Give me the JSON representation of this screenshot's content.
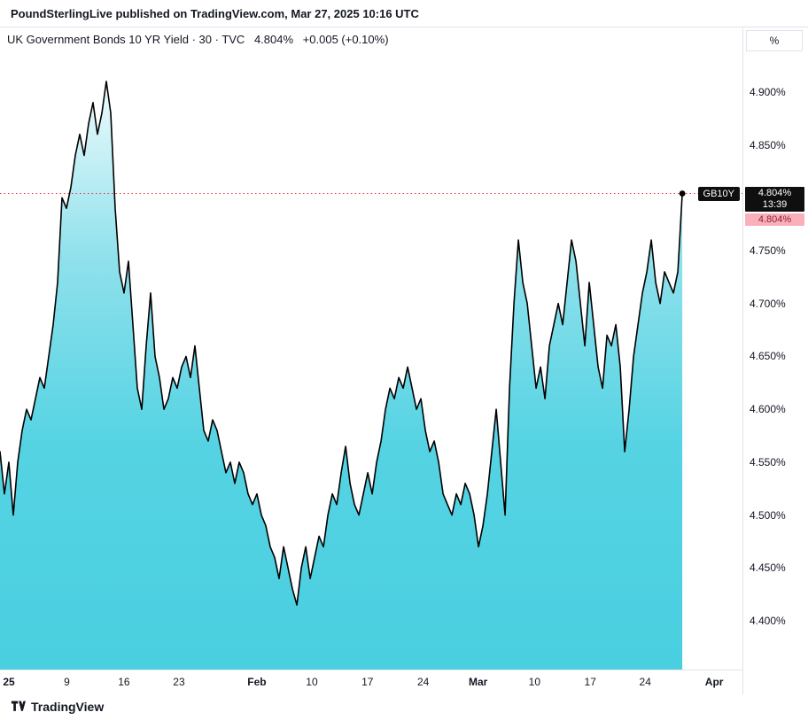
{
  "header": {
    "text": "PoundSterlingLive published on TradingView.com, Mar 27, 2025 10:16 UTC"
  },
  "legend": {
    "title": "UK Government Bonds 10 YR Yield · 30 · TVC",
    "price": "4.804%",
    "change": "+0.005 (+0.10%)"
  },
  "axis": {
    "unit": "%"
  },
  "footer": {
    "brand": "TradingView"
  },
  "chart_data": {
    "type": "area",
    "title": "UK Government Bonds 10 YR Yield · 30 · TVC",
    "symbol": "GB10Y",
    "last_price": "4.804%",
    "change": "+0.005 (+0.10%)",
    "price_line_value": 4.804,
    "price_label": "4.804%",
    "time_label": "13:39",
    "secondary_price_label": "4.804%",
    "ylabel": "%",
    "y_ticks": [
      4.9,
      4.85,
      4.8,
      4.75,
      4.7,
      4.65,
      4.6,
      4.55,
      4.5,
      4.45,
      4.4
    ],
    "y_render_range": [
      4.354,
      4.961
    ],
    "x_ticks": [
      {
        "label": "25",
        "pos": 0.012,
        "bold": true
      },
      {
        "label": "9",
        "pos": 0.09,
        "bold": false
      },
      {
        "label": "16",
        "pos": 0.167,
        "bold": false
      },
      {
        "label": "23",
        "pos": 0.241,
        "bold": false
      },
      {
        "label": "Feb",
        "pos": 0.346,
        "bold": true
      },
      {
        "label": "10",
        "pos": 0.42,
        "bold": false
      },
      {
        "label": "17",
        "pos": 0.495,
        "bold": false
      },
      {
        "label": "24",
        "pos": 0.57,
        "bold": false
      },
      {
        "label": "Mar",
        "pos": 0.644,
        "bold": true
      },
      {
        "label": "10",
        "pos": 0.72,
        "bold": false
      },
      {
        "label": "17",
        "pos": 0.795,
        "bold": false
      },
      {
        "label": "24",
        "pos": 0.869,
        "bold": false
      },
      {
        "label": "Apr",
        "pos": 0.962,
        "bold": true
      }
    ],
    "series_x_end": 0.919,
    "values": [
      4.56,
      4.52,
      4.55,
      4.5,
      4.55,
      4.58,
      4.6,
      4.59,
      4.61,
      4.63,
      4.62,
      4.65,
      4.68,
      4.72,
      4.8,
      4.79,
      4.81,
      4.84,
      4.86,
      4.84,
      4.87,
      4.89,
      4.86,
      4.88,
      4.91,
      4.88,
      4.79,
      4.73,
      4.71,
      4.74,
      4.68,
      4.62,
      4.6,
      4.66,
      4.71,
      4.65,
      4.63,
      4.6,
      4.61,
      4.63,
      4.62,
      4.64,
      4.65,
      4.63,
      4.66,
      4.62,
      4.58,
      4.57,
      4.59,
      4.58,
      4.56,
      4.54,
      4.55,
      4.53,
      4.55,
      4.54,
      4.52,
      4.51,
      4.52,
      4.5,
      4.49,
      4.47,
      4.46,
      4.44,
      4.47,
      4.45,
      4.43,
      4.415,
      4.45,
      4.47,
      4.44,
      4.46,
      4.48,
      4.47,
      4.5,
      4.52,
      4.51,
      4.54,
      4.565,
      4.53,
      4.51,
      4.5,
      4.52,
      4.54,
      4.52,
      4.55,
      4.57,
      4.6,
      4.62,
      4.61,
      4.63,
      4.62,
      4.64,
      4.62,
      4.6,
      4.61,
      4.58,
      4.56,
      4.57,
      4.55,
      4.52,
      4.51,
      4.5,
      4.52,
      4.51,
      4.53,
      4.52,
      4.5,
      4.47,
      4.49,
      4.52,
      4.56,
      4.6,
      4.55,
      4.5,
      4.62,
      4.7,
      4.76,
      4.72,
      4.7,
      4.66,
      4.62,
      4.64,
      4.61,
      4.66,
      4.68,
      4.7,
      4.68,
      4.72,
      4.76,
      4.74,
      4.7,
      4.66,
      4.72,
      4.68,
      4.64,
      4.62,
      4.67,
      4.66,
      4.68,
      4.64,
      4.56,
      4.6,
      4.65,
      4.68,
      4.71,
      4.73,
      4.76,
      4.72,
      4.7,
      4.73,
      4.72,
      4.71,
      4.73,
      4.804
    ],
    "colors": {
      "line": "#000000",
      "area_top": "#eefbfd",
      "area_mid": "#8fe1ec",
      "area_low": "#55d3e3",
      "area_bottom": "#49cfe0",
      "priceline": "#f23645",
      "badge_bg": "#0f0f0f",
      "pink_bg": "#f9b0bb",
      "pink_text": "#8c1e2c",
      "pane_border": "#e0e3eb"
    }
  }
}
